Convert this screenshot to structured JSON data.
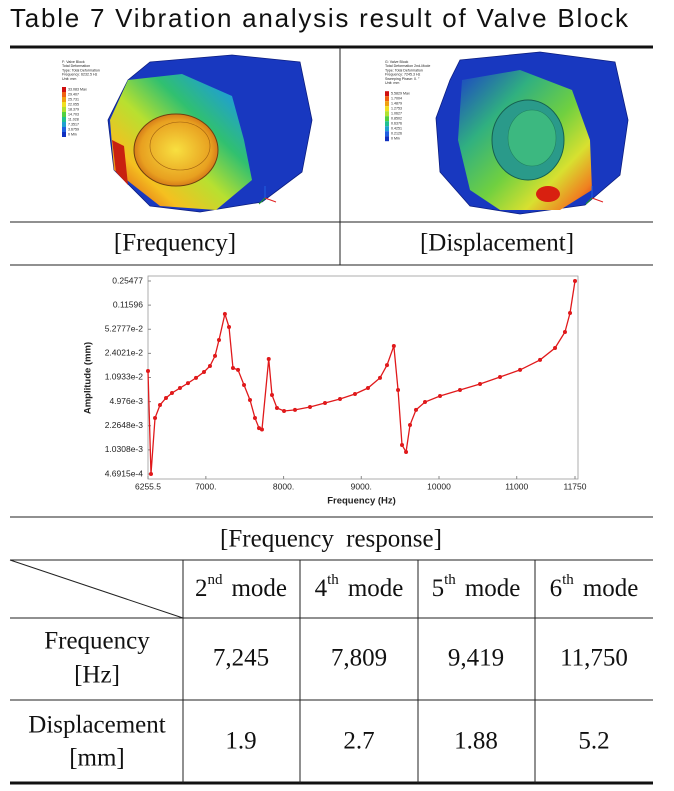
{
  "title": "Table 7 Vibration analysis result of Valve Block",
  "images": [
    {
      "header": [
        "F: Valve Block",
        "Total Deformation",
        "Type: Total Deformation",
        "Frequency: 6232.5 Hz",
        "Unit: mm"
      ],
      "legend": [
        "33.083 Max",
        "29.407",
        "25.731",
        "22.055",
        "18.379",
        "14.703",
        "11.028",
        "7.3517",
        "3.6759",
        "0 Min"
      ],
      "caption": "[Frequency]"
    },
    {
      "header": [
        "G: Valve Block",
        "Total Deformation 2nd-Mode",
        "Type: Total Deformation",
        "Frequency: 7245.3 Hz",
        "Sweeping Phase: 0. °",
        "Unit: mm"
      ],
      "legend": [
        "5.5829 Max",
        "1.7004",
        "1.4879",
        "1.2753",
        "1.0627",
        "0.8502",
        "0.6376",
        "0.4251",
        "0.2126",
        "0 Min"
      ],
      "caption": "[Displacement]"
    }
  ],
  "chart": {
    "type": "line",
    "xlabel": "Frequency (Hz)",
    "ylabel": "Amplitude (mm)",
    "xlim": [
      6255.5,
      11750
    ],
    "ylim": [
      0.00046915,
      0.25477
    ],
    "log_y": true,
    "xticks": [
      6255.5,
      {
        "value": 7000,
        "label": "7000."
      },
      {
        "value": 8000,
        "label": "8000."
      },
      {
        "value": 9000,
        "label": "9000."
      },
      10000,
      11000,
      11750
    ],
    "yticks": [
      {
        "value": 0.00046915,
        "label": "4.6915e-4"
      },
      {
        "value": 0.0010308,
        "label": "1.0308e-3"
      },
      {
        "value": 0.0022648,
        "label": "2.2648e-3"
      },
      {
        "value": 0.004976,
        "label": "4.976e-3"
      },
      {
        "value": 0.010933,
        "label": "1.0933e-2"
      },
      {
        "value": 0.024021,
        "label": "2.4021e-2"
      },
      {
        "value": 0.052777,
        "label": "5.2777e-2"
      },
      0.11596,
      0.25477
    ],
    "series": [
      {
        "color": "#e0191b",
        "x": [
          6255.5,
          6294,
          6346,
          6410,
          6487,
          6564,
          6667,
          6770,
          6873,
          6976,
          7053,
          7118,
          7169,
          7245,
          7298,
          7349,
          7414,
          7491,
          7568,
          7632,
          7684,
          7722,
          7809,
          7851,
          7915,
          8006,
          8147,
          8340,
          8533,
          8726,
          8919,
          9086,
          9241,
          9331,
          9419,
          9473,
          9524,
          9576,
          9627,
          9704,
          9820,
          10013,
          10270,
          10528,
          10785,
          11043,
          11300,
          11493,
          11621,
          11686,
          11750
        ],
        "values": [
          0.0135,
          0.00046915,
          0.00292,
          0.00446,
          0.0056,
          0.0066,
          0.00776,
          0.0091,
          0.0108,
          0.0131,
          0.0159,
          0.0221,
          0.0372,
          0.0868,
          0.0568,
          0.0149,
          0.014,
          0.00855,
          0.00525,
          0.00292,
          0.0021,
          0.002,
          0.02,
          0.00618,
          0.00404,
          0.00367,
          0.0038,
          0.00418,
          0.00476,
          0.00542,
          0.00638,
          0.00776,
          0.0108,
          0.0164,
          0.0306,
          0.00727,
          0.00121,
          0.000962,
          0.00232,
          0.0038,
          0.00491,
          0.00597,
          0.00727,
          0.00885,
          0.0111,
          0.014,
          0.0194,
          0.0286,
          0.0482,
          0.0897,
          0.25477
        ]
      }
    ]
  },
  "table": {
    "caption": "[Frequency response]",
    "columns": [
      {
        "num": "2",
        "sup": "nd",
        "word": "mode"
      },
      {
        "num": "4",
        "sup": "th",
        "word": "mode"
      },
      {
        "num": "5",
        "sup": "th",
        "word": "mode"
      },
      {
        "num": "6",
        "sup": "th",
        "word": "mode"
      }
    ],
    "rows": [
      {
        "label": [
          "Frequency",
          "[Hz]"
        ],
        "values": [
          "7,245",
          "7,809",
          "9,419",
          "11,750"
        ]
      },
      {
        "label": [
          "Displacement",
          "[mm]"
        ],
        "values": [
          1.9,
          2.7,
          1.88,
          5.2
        ]
      }
    ]
  }
}
